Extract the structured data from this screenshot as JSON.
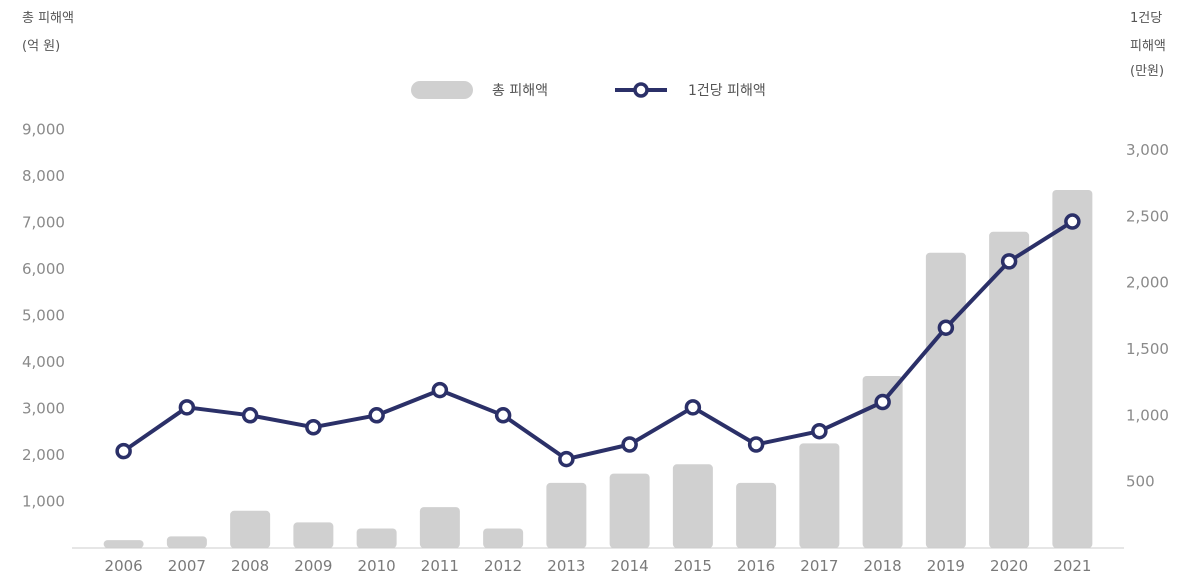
{
  "chart_data": {
    "type": "bar",
    "categories": [
      "2006",
      "2007",
      "2008",
      "2009",
      "2010",
      "2011",
      "2012",
      "2013",
      "2014",
      "2015",
      "2016",
      "2017",
      "2018",
      "2019",
      "2020",
      "2021"
    ],
    "series": [
      {
        "name": "총 피해액",
        "type": "bar",
        "axis": "left",
        "values": [
          170,
          250,
          800,
          550,
          420,
          880,
          420,
          1400,
          1600,
          1800,
          1400,
          2250,
          3700,
          6350,
          6800,
          7700
        ]
      },
      {
        "name": "1건당 피해액",
        "type": "line",
        "axis": "right",
        "values": [
          730,
          1060,
          1000,
          910,
          1000,
          1190,
          1000,
          670,
          780,
          1060,
          780,
          880,
          1100,
          1660,
          2160,
          2460
        ]
      }
    ],
    "left_axis": {
      "title_line1": "총 피해액",
      "title_line2": "(억 원)",
      "ylim": [
        0,
        10000
      ],
      "ticks": [
        1000,
        2000,
        3000,
        4000,
        5000,
        6000,
        7000,
        8000,
        9000
      ],
      "tick_labels": [
        "1,000",
        "2,000",
        "3,000",
        "4,000",
        "5,000",
        "6,000",
        "7,000",
        "8,000",
        "9,000"
      ]
    },
    "right_axis": {
      "title_line1": "1건당",
      "title_line2": "피해액",
      "title_line3": "(만원)",
      "ylim": [
        0,
        3500
      ],
      "ticks": [
        500,
        1000,
        1500,
        2000,
        2500,
        3000
      ],
      "tick_labels": [
        "500",
        "1,000",
        "1,500",
        "2,000",
        "2,500",
        "3,000"
      ]
    },
    "legend_position": "top-center",
    "grid": false,
    "colors": {
      "bar": "#d0d0d0",
      "line": "#2b3068",
      "marker_fill": "#ffffff"
    }
  }
}
